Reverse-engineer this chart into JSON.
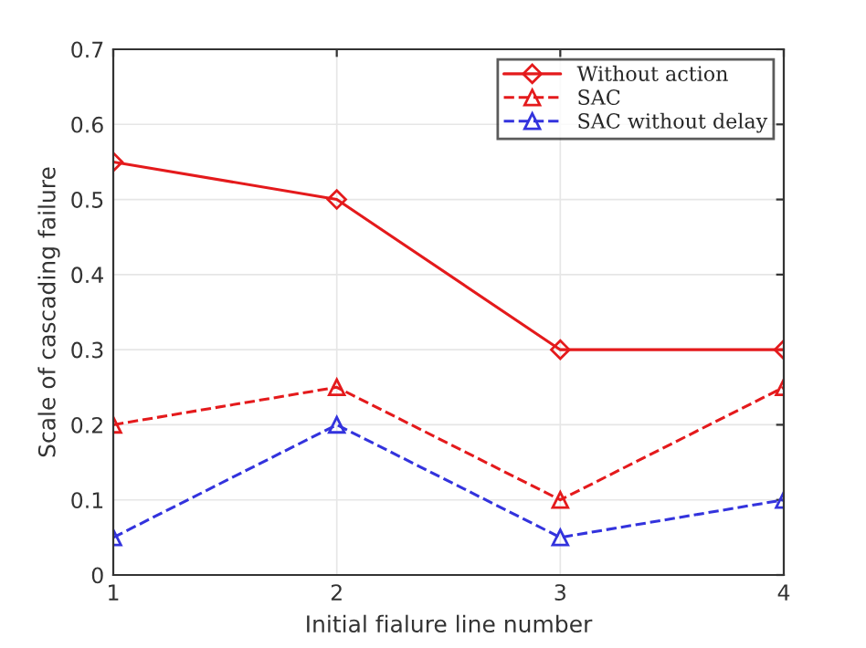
{
  "chart_data": {
    "type": "line",
    "xlabel": "Initial fialure line number",
    "ylabel": "Scale of cascading failure",
    "x": [
      1,
      2,
      3,
      4
    ],
    "xlim": [
      1,
      4
    ],
    "xticks": [
      1,
      2,
      3,
      4
    ],
    "ylim": [
      0,
      0.7
    ],
    "yticks": [
      0,
      0.1,
      0.2,
      0.3,
      0.4,
      0.5,
      0.6,
      0.7
    ],
    "grid": true,
    "legend": "top right",
    "series": [
      {
        "name": "Without action",
        "color": "#e41a1c",
        "values": [
          0.55,
          0.5,
          0.3,
          0.3
        ],
        "marker": "diamond",
        "line_style": "solid"
      },
      {
        "name": "SAC",
        "color": "#e41a1c",
        "values": [
          0.2,
          0.25,
          0.1,
          0.25
        ],
        "marker": "triangle",
        "line_style": "dashed"
      },
      {
        "name": "SAC without delay",
        "color": "#3333dd",
        "values": [
          0.05,
          0.2,
          0.05,
          0.1
        ],
        "marker": "triangle",
        "line_style": "dashed"
      }
    ]
  }
}
